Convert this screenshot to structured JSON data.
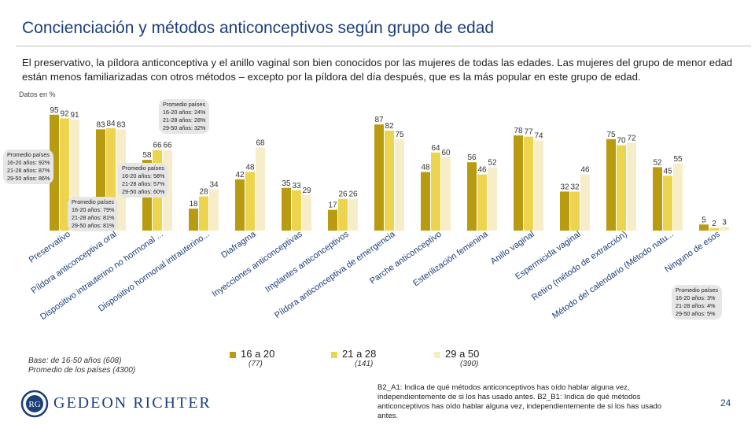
{
  "title": "Concienciación y métodos anticonceptivos según grupo de edad",
  "subtitle": "El preservativo, la píldora anticonceptiva y el anillo vaginal son bien conocidos por las mujeres de todas las edades. Las mujeres del grupo de menor edad están menos familiarizadas con otros métodos – excepto por la píldora del día después, que es la más popular en este grupo de edad.",
  "unit_label": "Datos en %",
  "colors": {
    "s1": "#b89b10",
    "s2": "#ecd44f",
    "s3": "#f7edc9",
    "callout_bg": "#e6e6e6",
    "title": "#1c3f7a"
  },
  "chart_data": {
    "type": "bar",
    "title": "Concienciación y métodos anticonceptivos según grupo de edad",
    "ylabel": "Datos en %",
    "ylim": [
      0,
      100
    ],
    "categories": [
      "Preservativo",
      "Píldora anticonceptiva oral",
      "Dispositivo intrauterino no hormonal ...",
      "Dispositivo hormonal intrauterino...",
      "Diafragma",
      "Inyecciones anticonceptivas",
      "Implantes anticonceptivos",
      "Píldora anticonceptiva de emergencia",
      "Parche anticonceptivo",
      "Esterilización femenina",
      "Anillo vaginal",
      "Espermicida vaginal",
      "Retiro (método de extracción)",
      "Método del calendario (Método natu...",
      "Ninguno de esos"
    ],
    "series": [
      {
        "name": "16 a 20",
        "n": "(77)",
        "values": [
          95,
          83,
          58,
          18,
          42,
          35,
          17,
          87,
          48,
          56,
          78,
          32,
          75,
          52,
          5
        ]
      },
      {
        "name": "21 a 28",
        "n": "(141)",
        "values": [
          92,
          84,
          66,
          28,
          48,
          33,
          26,
          82,
          64,
          46,
          77,
          32,
          70,
          45,
          2
        ]
      },
      {
        "name": "29 a 50",
        "n": "(390)",
        "values": [
          91,
          83,
          66,
          34,
          68,
          29,
          26,
          75,
          60,
          52,
          74,
          46,
          72,
          55,
          3
        ]
      }
    ]
  },
  "callouts": [
    {
      "heading": "Promedio países",
      "lines": [
        "16-20 años: 92%",
        "21-28 años: 87%",
        "29-50 años: 86%"
      ]
    },
    {
      "heading": "Promedio países",
      "lines": [
        "16-20 años: 79%",
        "21-28 años: 81%",
        "29-50 años: 81%"
      ]
    },
    {
      "heading": "Promedio países",
      "lines": [
        "16-20 años: 58%",
        "21-28 años: 57%",
        "29-50 años: 60%"
      ]
    },
    {
      "heading": "Promedio países",
      "lines": [
        "16-20 años: 24%",
        "21-28 años: 28%",
        "29-50 años: 32%"
      ]
    },
    {
      "heading": "Promedio países",
      "lines": [
        "16-20 años: 3%",
        "21-28 años: 4%",
        "29-50 años: 5%"
      ]
    }
  ],
  "base_note": [
    "Base: de 16-50 años (608)",
    "Promedio de los países (4300)"
  ],
  "brand": "GEDEON RICHTER",
  "logo_letters": "RG",
  "question_note": "B2_A1: Indica de qué métodos anticonceptivos has oído hablar alguna vez, independientemente de si los has usado antes. B2_B1: Indica de qué métodos anticonceptivos has oído hablar alguna vez, independientemente de si los has usado antes.",
  "page_number": "24"
}
